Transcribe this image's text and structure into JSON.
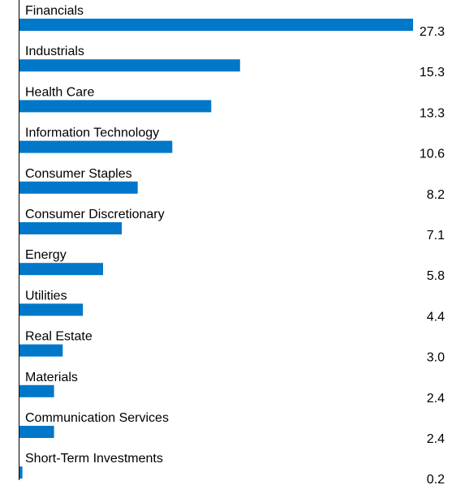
{
  "chart_data": {
    "type": "bar",
    "orientation": "horizontal",
    "categories": [
      "Financials",
      "Industrials",
      "Health Care",
      "Information Technology",
      "Consumer Staples",
      "Consumer Discretionary",
      "Energy",
      "Utilities",
      "Real Estate",
      "Materials",
      "Communication Services",
      "Short-Term Investments"
    ],
    "values": [
      27.3,
      15.3,
      13.3,
      10.6,
      8.2,
      7.1,
      5.8,
      4.4,
      3.0,
      2.4,
      2.4,
      0.2
    ],
    "value_labels": [
      "27.3",
      "15.3",
      "13.3",
      "10.6",
      "8.2",
      "7.1",
      "5.8",
      "4.4",
      "3.0",
      "2.4",
      "2.4",
      "0.2"
    ],
    "title": "",
    "xlabel": "",
    "ylabel": "",
    "xlim": [
      0,
      27.3
    ],
    "grid": false,
    "legend": "none",
    "bar_color": "#0077c8",
    "axis_color": "#000000"
  }
}
